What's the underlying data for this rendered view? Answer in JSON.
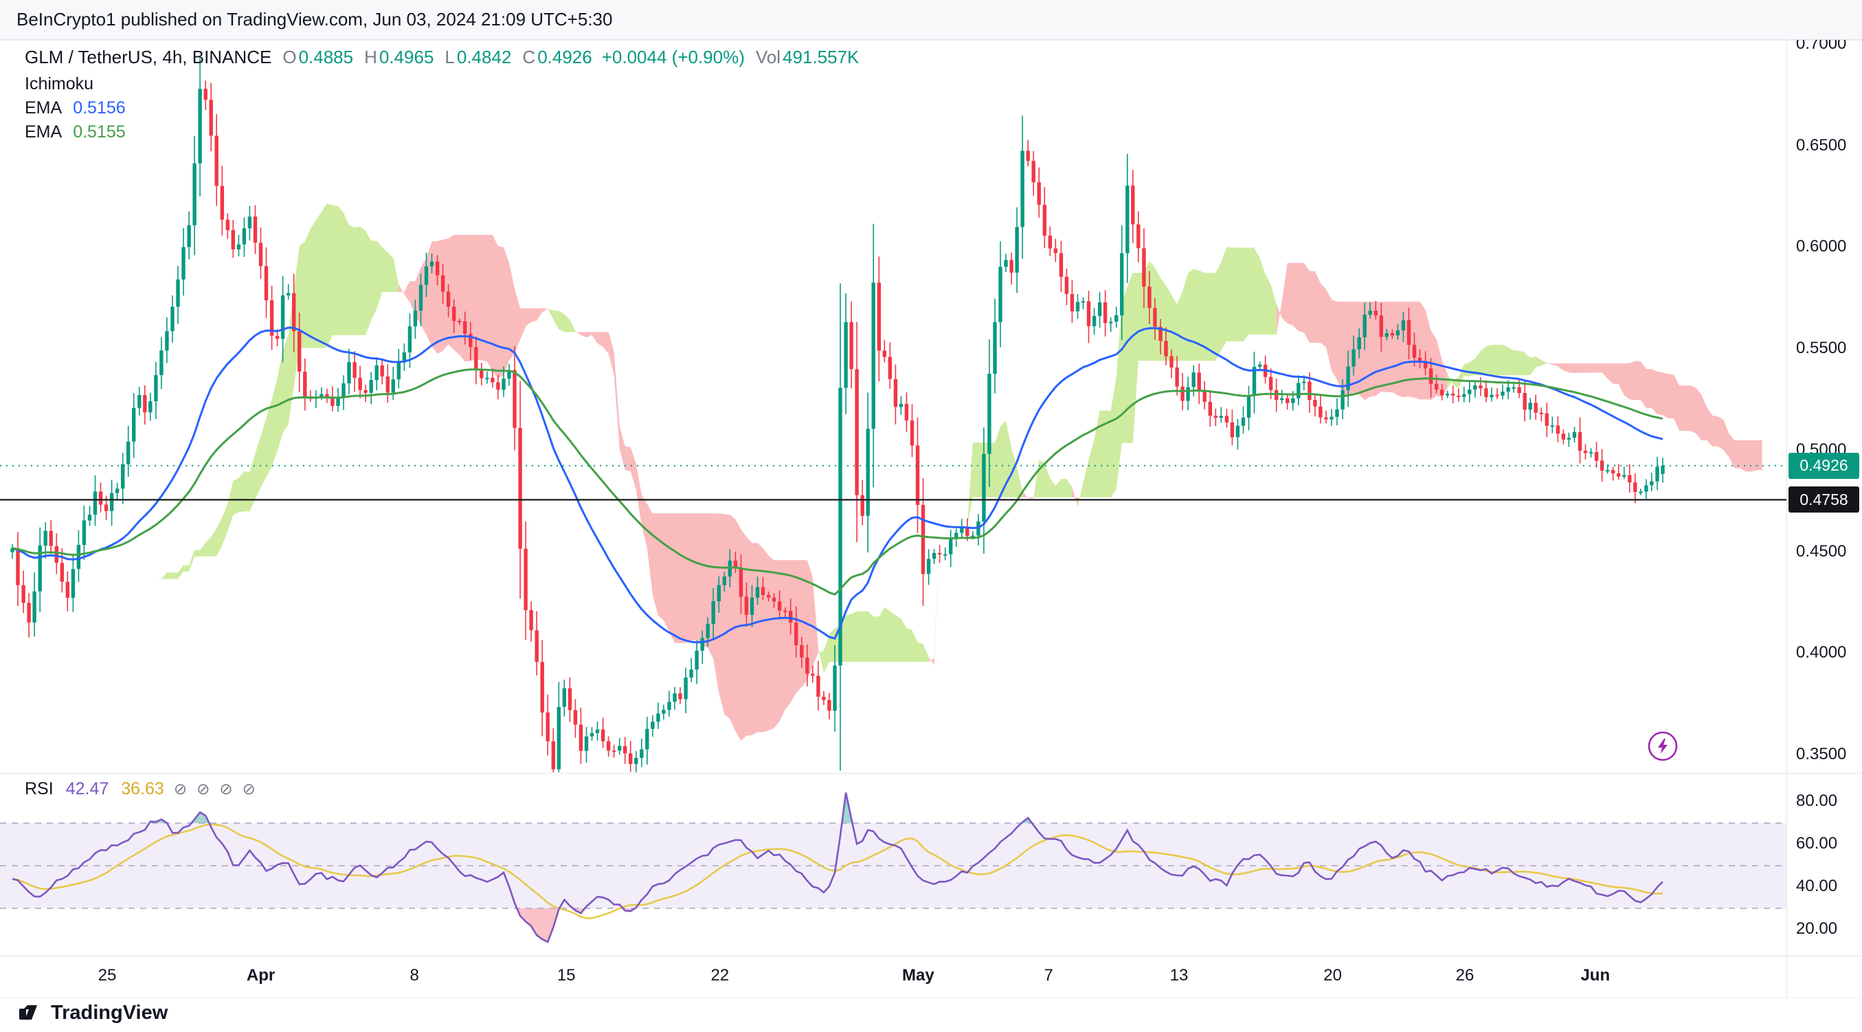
{
  "publish_bar": {
    "text": "BeInCrypto1 published on TradingView.com, Jun 03, 2024 21:09 UTC+5:30"
  },
  "header": {
    "symbol": "GLM / TetherUS, 4h, BINANCE",
    "o_label": "O",
    "o": "0.4885",
    "h_label": "H",
    "h": "0.4965",
    "l_label": "L",
    "l": "0.4842",
    "c_label": "C",
    "c": "0.4926",
    "change": "+0.0044 (+0.90%)",
    "vol_label": "Vol",
    "vol": "491.557K",
    "indicator": "Ichimoku",
    "ema1_label": "EMA",
    "ema1_value": "0.5156",
    "ema2_label": "EMA",
    "ema2_value": "0.5155"
  },
  "badges": {
    "last_price": "0.4926",
    "black_line": "0.4758"
  },
  "rsi_legend": {
    "label": "RSI",
    "value": "42.47",
    "ma_value": "36.63",
    "muted_icons": [
      "⊘",
      "⊘",
      "⊘",
      "⊘"
    ]
  },
  "footer": {
    "brand": "TradingView"
  },
  "chart_data": {
    "type": "candlestick",
    "symbol": "GLM / TetherUS",
    "interval": "4h",
    "exchange": "BINANCE",
    "legend_values": {
      "open": 0.4885,
      "high": 0.4965,
      "low": 0.4842,
      "close": 0.4926,
      "change": 0.0044,
      "change_pct": 0.9,
      "volume": "491.557K",
      "ema1": 0.5156,
      "ema2": 0.5155,
      "rsi": 42.47,
      "rsi_ma": 36.63
    },
    "price_axis": {
      "min": 0.35,
      "max": 0.7,
      "ticks": [
        {
          "label": "0.7000",
          "value": 0.7
        },
        {
          "label": "0.6500",
          "value": 0.65
        },
        {
          "label": "0.6000",
          "value": 0.6
        },
        {
          "label": "0.5500",
          "value": 0.55
        },
        {
          "label": "0.5000",
          "value": 0.5
        },
        {
          "label": "0.4500",
          "value": 0.45
        },
        {
          "label": "0.4000",
          "value": 0.4
        },
        {
          "label": "0.3500",
          "value": 0.35
        }
      ]
    },
    "rsi_axis": {
      "band": [
        30,
        70
      ],
      "mid": 50,
      "ticks": [
        {
          "label": "80.00",
          "value": 80
        },
        {
          "label": "60.00",
          "value": 60
        },
        {
          "label": "40.00",
          "value": 40
        },
        {
          "label": "20.00",
          "value": 20
        }
      ]
    },
    "time_axis": [
      {
        "label": "25",
        "t": 0.06,
        "major": false
      },
      {
        "label": "Apr",
        "t": 0.146,
        "major": true
      },
      {
        "label": "8",
        "t": 0.232,
        "major": false
      },
      {
        "label": "15",
        "t": 0.317,
        "major": false
      },
      {
        "label": "22",
        "t": 0.403,
        "major": false
      },
      {
        "label": "May",
        "t": 0.514,
        "major": true
      },
      {
        "label": "7",
        "t": 0.587,
        "major": false
      },
      {
        "label": "13",
        "t": 0.66,
        "major": false
      },
      {
        "label": "20",
        "t": 0.746,
        "major": false
      },
      {
        "label": "26",
        "t": 0.82,
        "major": false
      },
      {
        "label": "Jun",
        "t": 0.893,
        "major": true
      }
    ],
    "last_price": 0.4926,
    "black_line_price": 0.4758,
    "last_candle": {
      "o": 0.4885,
      "h": 0.4965,
      "l": 0.4842,
      "c": 0.4926
    },
    "candle_count": 300,
    "colors": {
      "up": "#089981",
      "down": "#F23645",
      "ema1": "#2962FF",
      "ema2": "#43A047",
      "cloud_up": "rgba(174,224,96,0.60)",
      "cloud_down": "rgba(242,84,91,0.40)",
      "rsi": "#7E57C2",
      "rsi_ma": "#E7C94C",
      "band_fill": "rgba(126,87,194,0.10)",
      "band_line": "#a9a3bd",
      "ob_fill": "rgba(8,153,129,0.38)",
      "os_fill": "rgba(242,54,69,0.30)",
      "last_line": "#089981",
      "black_line": "#1a1a1a"
    },
    "price_waypoints": [
      [
        0.0,
        0.45
      ],
      [
        0.006,
        0.425
      ],
      [
        0.011,
        0.412
      ],
      [
        0.018,
        0.462
      ],
      [
        0.026,
        0.445
      ],
      [
        0.033,
        0.424
      ],
      [
        0.04,
        0.455
      ],
      [
        0.05,
        0.478
      ],
      [
        0.058,
        0.472
      ],
      [
        0.066,
        0.488
      ],
      [
        0.075,
        0.528
      ],
      [
        0.082,
        0.518
      ],
      [
        0.091,
        0.552
      ],
      [
        0.101,
        0.588
      ],
      [
        0.108,
        0.618
      ],
      [
        0.115,
        0.69
      ],
      [
        0.121,
        0.648
      ],
      [
        0.128,
        0.61
      ],
      [
        0.136,
        0.598
      ],
      [
        0.143,
        0.618
      ],
      [
        0.15,
        0.592
      ],
      [
        0.159,
        0.548
      ],
      [
        0.166,
        0.588
      ],
      [
        0.172,
        0.55
      ],
      [
        0.179,
        0.52
      ],
      [
        0.186,
        0.532
      ],
      [
        0.196,
        0.52
      ],
      [
        0.205,
        0.545
      ],
      [
        0.212,
        0.524
      ],
      [
        0.221,
        0.54
      ],
      [
        0.228,
        0.53
      ],
      [
        0.238,
        0.548
      ],
      [
        0.247,
        0.583
      ],
      [
        0.254,
        0.595
      ],
      [
        0.263,
        0.57
      ],
      [
        0.272,
        0.56
      ],
      [
        0.279,
        0.545
      ],
      [
        0.287,
        0.535
      ],
      [
        0.294,
        0.528
      ],
      [
        0.3,
        0.545
      ],
      [
        0.304,
        0.518
      ],
      [
        0.307,
        0.46
      ],
      [
        0.311,
        0.42
      ],
      [
        0.317,
        0.4
      ],
      [
        0.323,
        0.36
      ],
      [
        0.328,
        0.342
      ],
      [
        0.332,
        0.385
      ],
      [
        0.338,
        0.374
      ],
      [
        0.344,
        0.354
      ],
      [
        0.349,
        0.36
      ],
      [
        0.355,
        0.364
      ],
      [
        0.362,
        0.349
      ],
      [
        0.369,
        0.357
      ],
      [
        0.377,
        0.344
      ],
      [
        0.384,
        0.362
      ],
      [
        0.391,
        0.37
      ],
      [
        0.398,
        0.377
      ],
      [
        0.406,
        0.381
      ],
      [
        0.413,
        0.399
      ],
      [
        0.42,
        0.412
      ],
      [
        0.429,
        0.434
      ],
      [
        0.436,
        0.446
      ],
      [
        0.444,
        0.42
      ],
      [
        0.452,
        0.431
      ],
      [
        0.461,
        0.428
      ],
      [
        0.469,
        0.42
      ],
      [
        0.477,
        0.4
      ],
      [
        0.486,
        0.385
      ],
      [
        0.495,
        0.372
      ],
      [
        0.499,
        0.4
      ],
      [
        0.502,
        0.548
      ],
      [
        0.507,
        0.575
      ],
      [
        0.51,
        0.5
      ],
      [
        0.514,
        0.455
      ],
      [
        0.518,
        0.5
      ],
      [
        0.521,
        0.592
      ],
      [
        0.525,
        0.548
      ],
      [
        0.53,
        0.546
      ],
      [
        0.535,
        0.524
      ],
      [
        0.541,
        0.52
      ],
      [
        0.546,
        0.498
      ],
      [
        0.552,
        0.44
      ],
      [
        0.557,
        0.454
      ],
      [
        0.563,
        0.446
      ],
      [
        0.569,
        0.456
      ],
      [
        0.575,
        0.464
      ],
      [
        0.581,
        0.454
      ],
      [
        0.586,
        0.468
      ],
      [
        0.59,
        0.518
      ],
      [
        0.595,
        0.562
      ],
      [
        0.6,
        0.598
      ],
      [
        0.605,
        0.588
      ],
      [
        0.61,
        0.622
      ],
      [
        0.613,
        0.658
      ],
      [
        0.617,
        0.634
      ],
      [
        0.621,
        0.626
      ],
      [
        0.626,
        0.604
      ],
      [
        0.631,
        0.598
      ],
      [
        0.636,
        0.584
      ],
      [
        0.642,
        0.568
      ],
      [
        0.648,
        0.574
      ],
      [
        0.653,
        0.556
      ],
      [
        0.658,
        0.576
      ],
      [
        0.664,
        0.56
      ],
      [
        0.67,
        0.568
      ],
      [
        0.675,
        0.632
      ],
      [
        0.68,
        0.608
      ],
      [
        0.685,
        0.584
      ],
      [
        0.691,
        0.563
      ],
      [
        0.697,
        0.548
      ],
      [
        0.703,
        0.538
      ],
      [
        0.709,
        0.527
      ],
      [
        0.715,
        0.538
      ],
      [
        0.722,
        0.527
      ],
      [
        0.727,
        0.514
      ],
      [
        0.733,
        0.519
      ],
      [
        0.739,
        0.504
      ],
      [
        0.746,
        0.519
      ],
      [
        0.753,
        0.543
      ],
      [
        0.759,
        0.537
      ],
      [
        0.766,
        0.527
      ],
      [
        0.773,
        0.521
      ],
      [
        0.781,
        0.537
      ],
      [
        0.788,
        0.524
      ],
      [
        0.795,
        0.514
      ],
      [
        0.803,
        0.519
      ],
      [
        0.81,
        0.543
      ],
      [
        0.817,
        0.56
      ],
      [
        0.823,
        0.571
      ],
      [
        0.829,
        0.559
      ],
      [
        0.835,
        0.554
      ],
      [
        0.842,
        0.563
      ],
      [
        0.849,
        0.549
      ],
      [
        0.857,
        0.539
      ],
      [
        0.864,
        0.529
      ],
      [
        0.871,
        0.53
      ],
      [
        0.878,
        0.527
      ],
      [
        0.886,
        0.531
      ],
      [
        0.893,
        0.529
      ],
      [
        0.9,
        0.526
      ],
      [
        0.907,
        0.531
      ],
      [
        0.915,
        0.524
      ],
      [
        0.922,
        0.519
      ],
      [
        0.929,
        0.514
      ],
      [
        0.936,
        0.507
      ],
      [
        0.944,
        0.509
      ],
      [
        0.951,
        0.501
      ],
      [
        0.958,
        0.497
      ],
      [
        0.966,
        0.489
      ],
      [
        0.973,
        0.487
      ],
      [
        0.98,
        0.486
      ],
      [
        0.986,
        0.478
      ],
      [
        0.992,
        0.486
      ],
      [
        1.0,
        0.4926
      ]
    ],
    "rsi_waypoints": [
      [
        0.0,
        45
      ],
      [
        0.015,
        34
      ],
      [
        0.03,
        44
      ],
      [
        0.05,
        55
      ],
      [
        0.065,
        60
      ],
      [
        0.08,
        68
      ],
      [
        0.09,
        72
      ],
      [
        0.1,
        64
      ],
      [
        0.108,
        70
      ],
      [
        0.115,
        75
      ],
      [
        0.125,
        62
      ],
      [
        0.135,
        50
      ],
      [
        0.145,
        57
      ],
      [
        0.155,
        47
      ],
      [
        0.165,
        53
      ],
      [
        0.175,
        40
      ],
      [
        0.186,
        46
      ],
      [
        0.2,
        42
      ],
      [
        0.21,
        50
      ],
      [
        0.221,
        45
      ],
      [
        0.234,
        52
      ],
      [
        0.25,
        62
      ],
      [
        0.26,
        57
      ],
      [
        0.272,
        47
      ],
      [
        0.285,
        42
      ],
      [
        0.298,
        47
      ],
      [
        0.305,
        30
      ],
      [
        0.315,
        20
      ],
      [
        0.325,
        14
      ],
      [
        0.333,
        34
      ],
      [
        0.344,
        28
      ],
      [
        0.355,
        37
      ],
      [
        0.365,
        32
      ],
      [
        0.377,
        28
      ],
      [
        0.386,
        39
      ],
      [
        0.4,
        44
      ],
      [
        0.413,
        52
      ],
      [
        0.428,
        59
      ],
      [
        0.44,
        62
      ],
      [
        0.45,
        54
      ],
      [
        0.46,
        57
      ],
      [
        0.47,
        51
      ],
      [
        0.48,
        44
      ],
      [
        0.492,
        37
      ],
      [
        0.499,
        47
      ],
      [
        0.505,
        84
      ],
      [
        0.512,
        60
      ],
      [
        0.52,
        67
      ],
      [
        0.53,
        61
      ],
      [
        0.54,
        57
      ],
      [
        0.55,
        44
      ],
      [
        0.56,
        41
      ],
      [
        0.57,
        45
      ],
      [
        0.58,
        48
      ],
      [
        0.59,
        55
      ],
      [
        0.6,
        62
      ],
      [
        0.61,
        68
      ],
      [
        0.616,
        73
      ],
      [
        0.625,
        64
      ],
      [
        0.635,
        61
      ],
      [
        0.645,
        54
      ],
      [
        0.655,
        51
      ],
      [
        0.665,
        55
      ],
      [
        0.675,
        66
      ],
      [
        0.685,
        57
      ],
      [
        0.695,
        49
      ],
      [
        0.705,
        44
      ],
      [
        0.715,
        50
      ],
      [
        0.725,
        44
      ],
      [
        0.735,
        41
      ],
      [
        0.745,
        52
      ],
      [
        0.755,
        55
      ],
      [
        0.765,
        47
      ],
      [
        0.775,
        44
      ],
      [
        0.785,
        52
      ],
      [
        0.795,
        43
      ],
      [
        0.805,
        48
      ],
      [
        0.815,
        57
      ],
      [
        0.825,
        62
      ],
      [
        0.835,
        54
      ],
      [
        0.845,
        58
      ],
      [
        0.855,
        49
      ],
      [
        0.865,
        44
      ],
      [
        0.875,
        46
      ],
      [
        0.885,
        50
      ],
      [
        0.895,
        47
      ],
      [
        0.905,
        50
      ],
      [
        0.915,
        45
      ],
      [
        0.925,
        42
      ],
      [
        0.935,
        39
      ],
      [
        0.945,
        44
      ],
      [
        0.955,
        40
      ],
      [
        0.965,
        36
      ],
      [
        0.975,
        38
      ],
      [
        0.985,
        32
      ],
      [
        0.992,
        37
      ],
      [
        1.0,
        42.47
      ]
    ]
  }
}
